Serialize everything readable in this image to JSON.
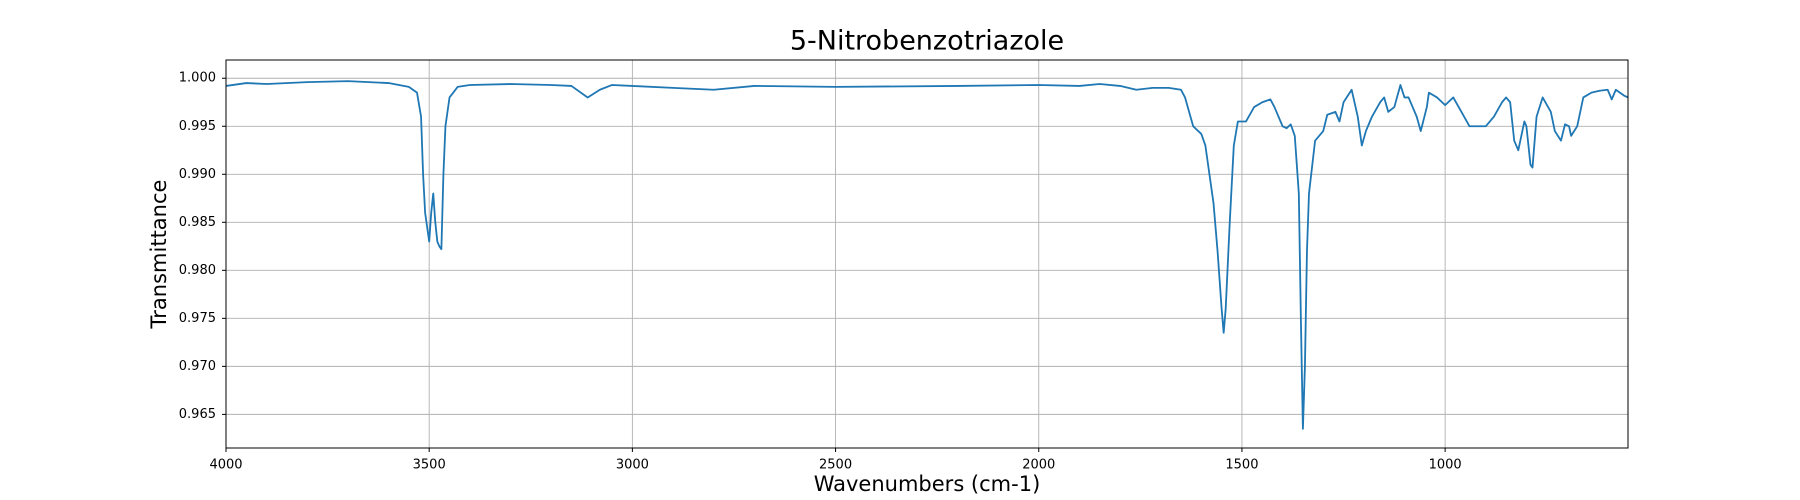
{
  "chart_data": {
    "type": "line",
    "title": "5-Nitrobenzotriazole",
    "x_label": "Wavenumbers (cm-1)",
    "y_label": "Transmittance",
    "xlim": [
      4000,
      550
    ],
    "ylim": [
      0.9615,
      1.0019
    ],
    "xticks": [
      4000,
      3500,
      3000,
      2500,
      2000,
      1500,
      1000
    ],
    "yticks": [
      0.965,
      {
        "value": 0.97,
        "label": "0.970"
      },
      0.975,
      {
        "value": 0.98,
        "label": "0.980"
      },
      0.985,
      {
        "value": 0.99,
        "label": "0.990"
      },
      0.995,
      {
        "value": 1.0,
        "label": "1.000"
      }
    ],
    "grid": true,
    "series": [
      {
        "color": "#1f77b4",
        "x": [
          4000,
          3950,
          3900,
          3800,
          3700,
          3600,
          3550,
          3530,
          3520,
          3515,
          3510,
          3500,
          3495,
          3490,
          3485,
          3480,
          3475,
          3470,
          3465,
          3460,
          3450,
          3430,
          3400,
          3300,
          3200,
          3150,
          3110,
          3080,
          3050,
          3000,
          2900,
          2800,
          2700,
          2500,
          2200,
          2000,
          1900,
          1850,
          1800,
          1760,
          1720,
          1680,
          1650,
          1640,
          1620,
          1600,
          1590,
          1580,
          1570,
          1560,
          1550,
          1545,
          1540,
          1530,
          1520,
          1510,
          1490,
          1470,
          1450,
          1430,
          1420,
          1400,
          1390,
          1380,
          1370,
          1360,
          1355,
          1350,
          1345,
          1340,
          1335,
          1320,
          1300,
          1290,
          1270,
          1260,
          1250,
          1230,
          1215,
          1205,
          1195,
          1180,
          1160,
          1150,
          1140,
          1125,
          1110,
          1100,
          1090,
          1070,
          1060,
          1045,
          1040,
          1020,
          1000,
          980,
          960,
          940,
          920,
          900,
          880,
          860,
          850,
          840,
          830,
          820,
          805,
          800,
          790,
          785,
          775,
          760,
          740,
          730,
          715,
          705,
          695,
          690,
          675,
          660,
          640,
          620,
          600,
          590,
          580,
          560,
          550
        ],
        "values": [
          0.9992,
          0.9995,
          0.9994,
          0.9996,
          0.9997,
          0.9995,
          0.9991,
          0.9985,
          0.996,
          0.99,
          0.986,
          0.983,
          0.986,
          0.988,
          0.985,
          0.983,
          0.9825,
          0.9822,
          0.99,
          0.995,
          0.998,
          0.9991,
          0.9993,
          0.9994,
          0.9993,
          0.9992,
          0.998,
          0.9988,
          0.9993,
          0.9992,
          0.999,
          0.9988,
          0.9992,
          0.9991,
          0.9992,
          0.9993,
          0.9992,
          0.9994,
          0.9992,
          0.9988,
          0.999,
          0.999,
          0.9988,
          0.998,
          0.995,
          0.9942,
          0.993,
          0.99,
          0.987,
          0.982,
          0.976,
          0.9735,
          0.976,
          0.985,
          0.993,
          0.9955,
          0.9955,
          0.997,
          0.9975,
          0.9978,
          0.997,
          0.995,
          0.9948,
          0.9952,
          0.994,
          0.988,
          0.975,
          0.9635,
          0.97,
          0.982,
          0.988,
          0.9935,
          0.9945,
          0.9962,
          0.9965,
          0.9955,
          0.9975,
          0.9988,
          0.996,
          0.993,
          0.9945,
          0.996,
          0.9975,
          0.998,
          0.9965,
          0.997,
          0.9993,
          0.998,
          0.998,
          0.996,
          0.9945,
          0.997,
          0.9985,
          0.998,
          0.9972,
          0.998,
          0.9965,
          0.995,
          0.995,
          0.995,
          0.996,
          0.9975,
          0.998,
          0.9975,
          0.9935,
          0.9925,
          0.9955,
          0.995,
          0.991,
          0.9907,
          0.996,
          0.998,
          0.9965,
          0.9945,
          0.9935,
          0.9952,
          0.995,
          0.994,
          0.995,
          0.998,
          0.9985,
          0.9987,
          0.9988,
          0.9978,
          0.9988,
          0.9982,
          0.998
        ]
      }
    ]
  }
}
